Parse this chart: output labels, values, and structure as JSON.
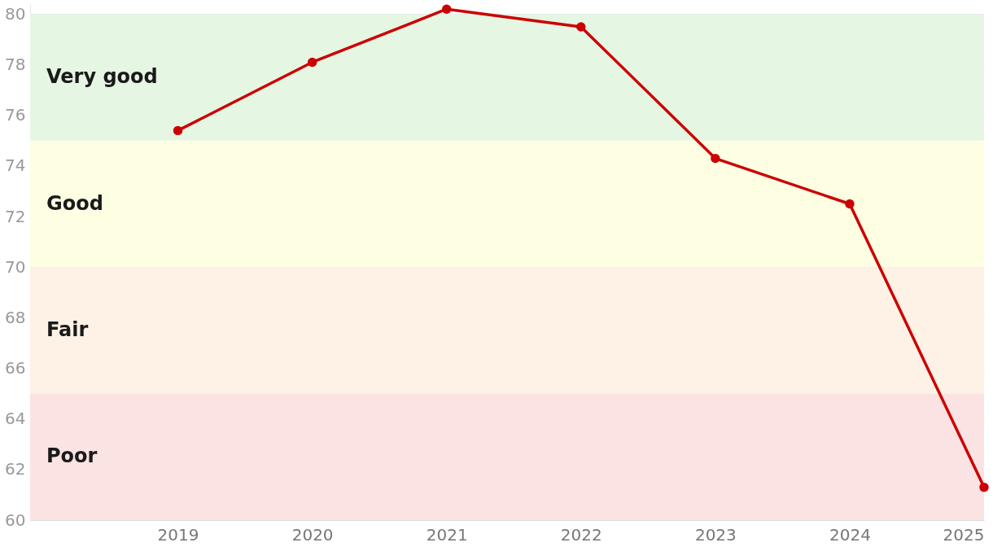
{
  "chart_data": {
    "type": "line",
    "x": [
      2019,
      2020,
      2021,
      2022,
      2023,
      2024,
      2025
    ],
    "series": [
      {
        "color": "#cc0000",
        "values": [
          75.4,
          78.1,
          80.2,
          79.5,
          74.3,
          72.5,
          61.3
        ]
      }
    ],
    "xlim": [
      2017.9,
      2025
    ],
    "xticks": [
      2019,
      2020,
      2021,
      2022,
      2023,
      2024,
      2025
    ],
    "ylim": [
      60,
      80.4
    ],
    "yticks": [
      60,
      62,
      64,
      66,
      68,
      70,
      72,
      74,
      76,
      78,
      80
    ],
    "bands": [
      {
        "axis": "y",
        "from": 75,
        "to": 80,
        "label": "Very good",
        "color": "#e5f6e3"
      },
      {
        "axis": "y",
        "from": 70,
        "to": 75,
        "label": "Good",
        "color": "#fefee3"
      },
      {
        "axis": "y",
        "from": 65,
        "to": 70,
        "label": "Fair",
        "color": "#fef2e6"
      },
      {
        "axis": "y",
        "from": 60,
        "to": 65,
        "label": "Poor",
        "color": "#fbe3e3"
      }
    ],
    "grid": "y",
    "marker": "circle",
    "line_style": "solid"
  }
}
